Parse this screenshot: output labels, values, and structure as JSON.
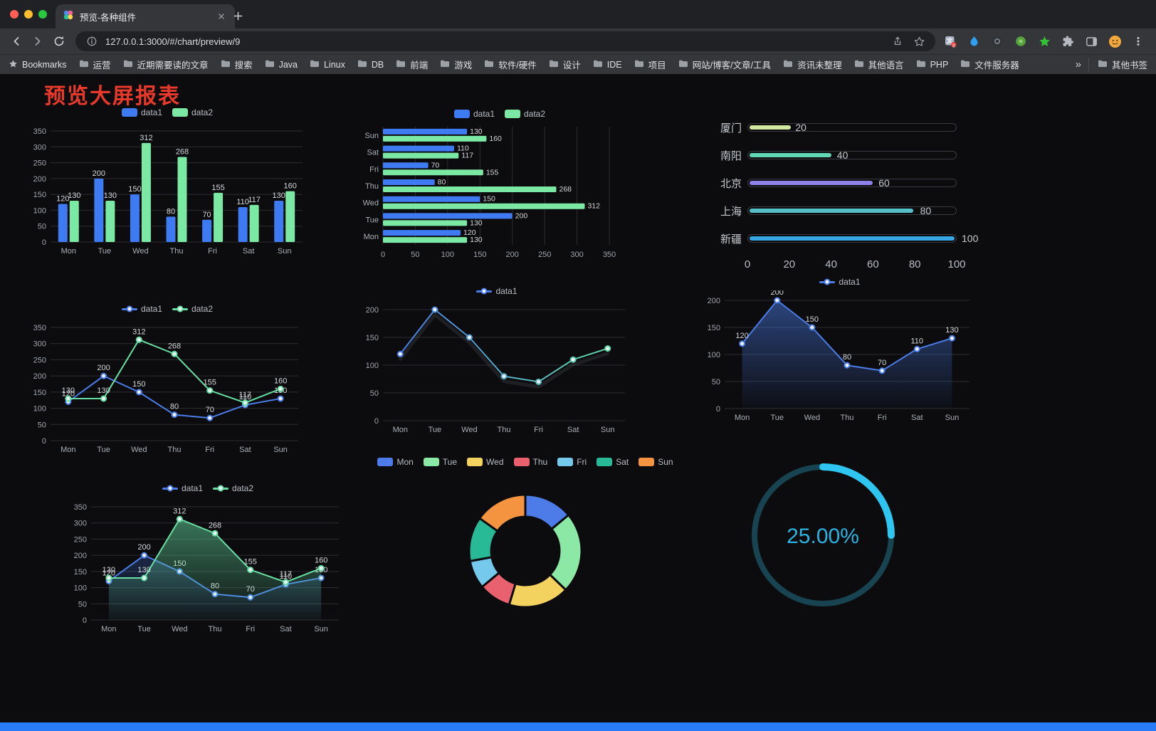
{
  "window": {
    "tab_title": "预览-各种组件",
    "url": "127.0.0.1:3000/#/chart/preview/9",
    "bookmarks": [
      "Bookmarks",
      "运营",
      "近期需要读的文章",
      "搜索",
      "Java",
      "Linux",
      "DB",
      "前端",
      "游戏",
      "软件/硬件",
      "设计",
      "IDE",
      "项目",
      "网站/博客/文章/工具",
      "资讯未整理",
      "其他语言",
      "PHP",
      "文件服务器"
    ],
    "overflow_chevron": "»",
    "other_bookmarks": "其他书签"
  },
  "page": {
    "title": "预览大屏报表",
    "title_color": "#e8392a",
    "footer_color": "#2a7bf7",
    "background": "#0c0c0f"
  },
  "chart_data": [
    {
      "name": "grouped-bar",
      "type": "bar",
      "categories": [
        "Mon",
        "Tue",
        "Wed",
        "Thu",
        "Fri",
        "Sat",
        "Sun"
      ],
      "series": [
        {
          "name": "data1",
          "color": "#3e7bf2",
          "values": [
            120,
            200,
            150,
            80,
            70,
            110,
            130
          ]
        },
        {
          "name": "data2",
          "color": "#7be8a4",
          "values": [
            130,
            130,
            312,
            268,
            155,
            117,
            160
          ]
        }
      ],
      "ylim": [
        0,
        350
      ],
      "ystep": 50,
      "labels": true,
      "legend_position": "top",
      "grid": true
    },
    {
      "name": "horizontal-bar",
      "type": "hbar",
      "categories": [
        "Mon",
        "Tue",
        "Wed",
        "Thu",
        "Fri",
        "Sat",
        "Sun"
      ],
      "series": [
        {
          "name": "data1",
          "color": "#3e7bf2",
          "values": [
            120,
            200,
            150,
            80,
            70,
            110,
            130
          ]
        },
        {
          "name": "data2",
          "color": "#7be8a4",
          "values": [
            130,
            130,
            312,
            268,
            155,
            117,
            160
          ]
        }
      ],
      "xlim": [
        0,
        350
      ],
      "xstep": 50,
      "labels": true,
      "legend_position": "top",
      "grid": true
    },
    {
      "name": "progress-bars",
      "type": "progress",
      "max": 100,
      "items": [
        {
          "label": "厦门",
          "value": 20,
          "color": "#d2e8a0"
        },
        {
          "label": "南阳",
          "value": 40,
          "color": "#61d8b5"
        },
        {
          "label": "北京",
          "value": 60,
          "color": "#8d80e8"
        },
        {
          "label": "上海",
          "value": 80,
          "color": "#55bfc8"
        },
        {
          "label": "新疆",
          "value": 100,
          "color": "#37a7e5"
        }
      ],
      "axis_ticks": [
        0,
        20,
        40,
        60,
        80,
        100
      ]
    },
    {
      "name": "line-two-series",
      "type": "line",
      "categories": [
        "Mon",
        "Tue",
        "Wed",
        "Thu",
        "Fri",
        "Sat",
        "Sun"
      ],
      "series": [
        {
          "name": "data1",
          "color": "#4a7de8",
          "values": [
            120,
            200,
            150,
            80,
            70,
            110,
            130
          ]
        },
        {
          "name": "data2",
          "color": "#67dfa4",
          "values": [
            130,
            130,
            312,
            268,
            155,
            117,
            160
          ]
        }
      ],
      "ylim": [
        0,
        350
      ],
      "ystep": 50,
      "labels": true,
      "legend_position": "top",
      "grid": true
    },
    {
      "name": "gradient-line",
      "type": "line",
      "categories": [
        "Mon",
        "Tue",
        "Wed",
        "Thu",
        "Fri",
        "Sat",
        "Sun"
      ],
      "series": [
        {
          "name": "data1",
          "color": "#4a7de8",
          "colorEnd": "#5fd9a6",
          "values": [
            120,
            200,
            150,
            80,
            70,
            110,
            130
          ]
        }
      ],
      "ylim": [
        0,
        200
      ],
      "ystep": 50,
      "labels": false,
      "shadow": true,
      "legend_position": "top",
      "grid": true
    },
    {
      "name": "area-line",
      "type": "line",
      "categories": [
        "Mon",
        "Tue",
        "Wed",
        "Thu",
        "Fri",
        "Sat",
        "Sun"
      ],
      "series": [
        {
          "name": "data1",
          "color": "#4a7de8",
          "values": [
            120,
            200,
            150,
            80,
            70,
            110,
            130
          ],
          "area": true,
          "areaOpacity": 0.5
        }
      ],
      "ylim": [
        0,
        200
      ],
      "ystep": 50,
      "labels": true,
      "legend_position": "top",
      "grid": true
    },
    {
      "name": "area-two-series",
      "type": "line",
      "categories": [
        "Mon",
        "Tue",
        "Wed",
        "Thu",
        "Fri",
        "Sat",
        "Sun"
      ],
      "series": [
        {
          "name": "data1",
          "color": "#4a7de8",
          "values": [
            120,
            200,
            150,
            80,
            70,
            110,
            130
          ],
          "area": true,
          "areaOpacity": 0.25
        },
        {
          "name": "data2",
          "color": "#67dfa4",
          "values": [
            130,
            130,
            312,
            268,
            155,
            117,
            160
          ],
          "area": true,
          "areaOpacity": 0.5
        }
      ],
      "ylim": [
        0,
        350
      ],
      "ystep": 50,
      "labels": true,
      "legend_position": "top",
      "grid": true
    },
    {
      "name": "donut",
      "type": "donut",
      "categories": [
        "Mon",
        "Tue",
        "Wed",
        "Thu",
        "Fri",
        "Sat",
        "Sun"
      ],
      "values": [
        120,
        200,
        150,
        80,
        70,
        110,
        130
      ],
      "colors": [
        "#4d7ce8",
        "#8ce8a5",
        "#f3d25f",
        "#e9616f",
        "#74c9ec",
        "#28b996",
        "#f59440"
      ],
      "legend_position": "top"
    },
    {
      "name": "gauge",
      "type": "gauge",
      "value": 25,
      "label": "25.00%",
      "color": "#2ec6f0",
      "track_color": "#174450",
      "text_color": "#2bb4e2"
    }
  ]
}
